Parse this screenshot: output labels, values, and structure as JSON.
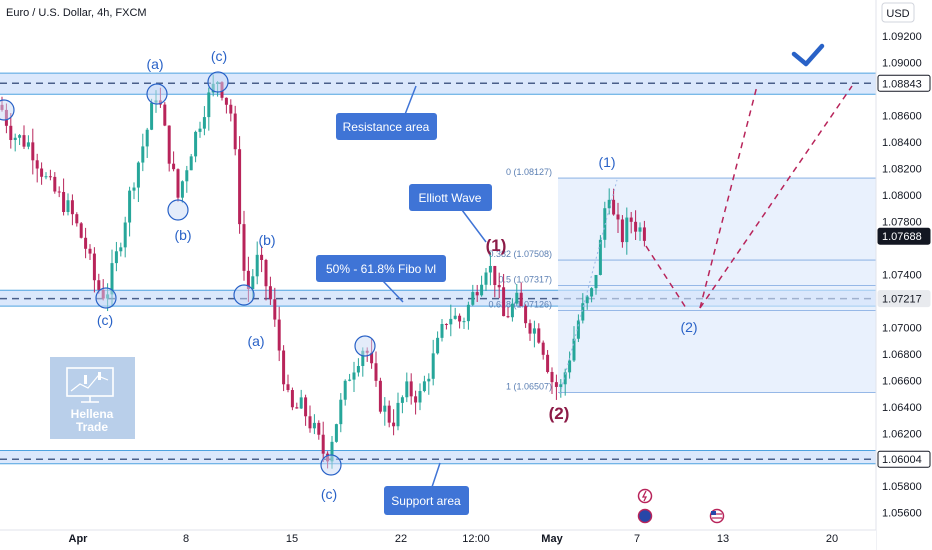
{
  "header": {
    "symbol_title": "Euro / U.S. Dollar, 4h, FXCM",
    "currency_button": "USD"
  },
  "chart_data": {
    "type": "candlestick",
    "title": "Euro / U.S. Dollar, 4h, FXCM",
    "ylim": [
      1.0553,
      1.0955
    ],
    "y_ticks": [
      {
        "value": 1.092,
        "label": "1.09200"
      },
      {
        "value": 1.09,
        "label": "1.09000"
      },
      {
        "value": 1.086,
        "label": "1.08600"
      },
      {
        "value": 1.084,
        "label": "1.08400"
      },
      {
        "value": 1.082,
        "label": "1.08200"
      },
      {
        "value": 1.08,
        "label": "1.08000"
      },
      {
        "value": 1.078,
        "label": "1.07800"
      },
      {
        "value": 1.074,
        "label": "1.07400"
      },
      {
        "value": 1.07,
        "label": "1.07000"
      },
      {
        "value": 1.068,
        "label": "1.06800"
      },
      {
        "value": 1.066,
        "label": "1.06600"
      },
      {
        "value": 1.064,
        "label": "1.06400"
      },
      {
        "value": 1.062,
        "label": "1.06200"
      },
      {
        "value": 1.058,
        "label": "1.05800"
      },
      {
        "value": 1.056,
        "label": "1.05600"
      }
    ],
    "x_ticks": [
      {
        "label": "Apr",
        "bold": true
      },
      {
        "label": "8",
        "bold": false
      },
      {
        "label": "15",
        "bold": false
      },
      {
        "label": "22",
        "bold": false
      },
      {
        "label": "12:00",
        "bold": false
      },
      {
        "label": "May",
        "bold": true
      },
      {
        "label": "7",
        "bold": false
      },
      {
        "label": "13",
        "bold": false
      },
      {
        "label": "20",
        "bold": false
      }
    ],
    "price_badges": [
      {
        "value": 1.08843,
        "label": "1.08843",
        "style": "outline"
      },
      {
        "value": 1.07688,
        "label": "1.07688",
        "style": "dark"
      },
      {
        "value": 1.07217,
        "label": "1.07217",
        "style": "light"
      },
      {
        "value": 1.06004,
        "label": "1.06004",
        "style": "outline"
      }
    ],
    "zones": [
      {
        "name": "resistance",
        "from": 1.0876,
        "to": 1.0892
      },
      {
        "name": "fibo",
        "from": 1.0716,
        "to": 1.0728
      },
      {
        "name": "support",
        "from": 1.0597,
        "to": 1.0607
      }
    ],
    "levels": [
      1.08843,
      1.07217,
      1.06004
    ],
    "fib_levels": [
      {
        "label": "0 (1.08127)",
        "value": 1.08127
      },
      {
        "label": "0.382 (1.07508)",
        "value": 1.07508
      },
      {
        "label": "0.5 (1.07317)",
        "value": 1.07317
      },
      {
        "label": "0.618 (1.07126)",
        "value": 1.07126
      },
      {
        "label": "1 (1.06507)",
        "value": 1.06507
      }
    ],
    "callouts": [
      {
        "text": "Resistance area",
        "bg": "#3f74d6"
      },
      {
        "text": "Elliott Wave",
        "bg": "#3f74d6"
      },
      {
        "text": "50% - 61.8% Fibo lvl",
        "bg": "#3f74d6"
      },
      {
        "text": "Support area",
        "bg": "#3f74d6"
      }
    ],
    "wave_labels": [
      {
        "text": "(a)",
        "color": "blue"
      },
      {
        "text": "(c)",
        "color": "blue"
      },
      {
        "text": "(b)",
        "color": "blue"
      },
      {
        "text": "(c)",
        "color": "blue"
      },
      {
        "text": "(b)",
        "color": "blue"
      },
      {
        "text": "(a)",
        "color": "blue"
      },
      {
        "text": "(c)",
        "color": "blue"
      },
      {
        "text": "(1)",
        "color": "blue"
      },
      {
        "text": "(2)",
        "color": "blue"
      },
      {
        "text": "(1)",
        "color": "maroon"
      },
      {
        "text": "(2)",
        "color": "maroon"
      }
    ],
    "bullish_color": "#26a69a",
    "bearish_color": "#b8245a",
    "zone_color": "#cfe0fb"
  },
  "watermark": {
    "line1": "Hellena",
    "line2": "Trade"
  }
}
